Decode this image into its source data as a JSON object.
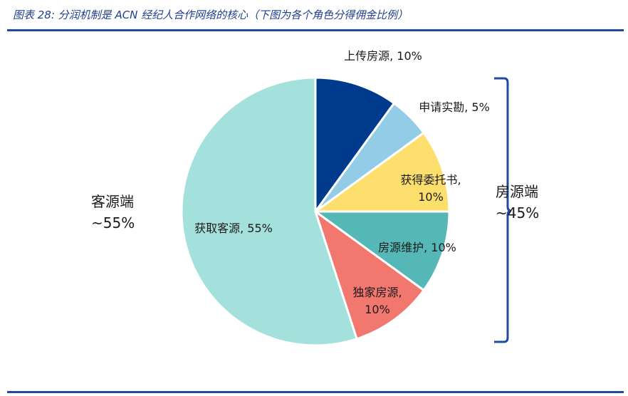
{
  "figure_title": "图表 28:  分润机制是 ACN 经纪人合作网络的核心（下图为各个角色分得佣金比例）",
  "chart_data": {
    "type": "pie",
    "series": [
      {
        "name": "上传房源",
        "value": 10,
        "label": [
          "上传房源, 10%"
        ],
        "color": "#003a8c"
      },
      {
        "name": "申请实勘",
        "value": 5,
        "label": [
          "申请实勘, 5%"
        ],
        "color": "#92cce6"
      },
      {
        "name": "获得委托书",
        "value": 10,
        "label": [
          "获得委托书,",
          "10%"
        ],
        "color": "#fddf6e"
      },
      {
        "name": "房源维护",
        "value": 10,
        "label": [
          "房源维护, 10%"
        ],
        "color": "#55b8b6"
      },
      {
        "name": "独家房源",
        "value": 10,
        "label": [
          "独家房源,",
          "10%"
        ],
        "color": "#f2776f"
      },
      {
        "name": "获取客源",
        "value": 55,
        "label": [
          "获取客源, 55%"
        ],
        "color": "#a5e1dc"
      }
    ],
    "groups": [
      {
        "name": "客源端",
        "share": "~55%"
      },
      {
        "name": "房源端",
        "share": "~45%"
      }
    ]
  }
}
